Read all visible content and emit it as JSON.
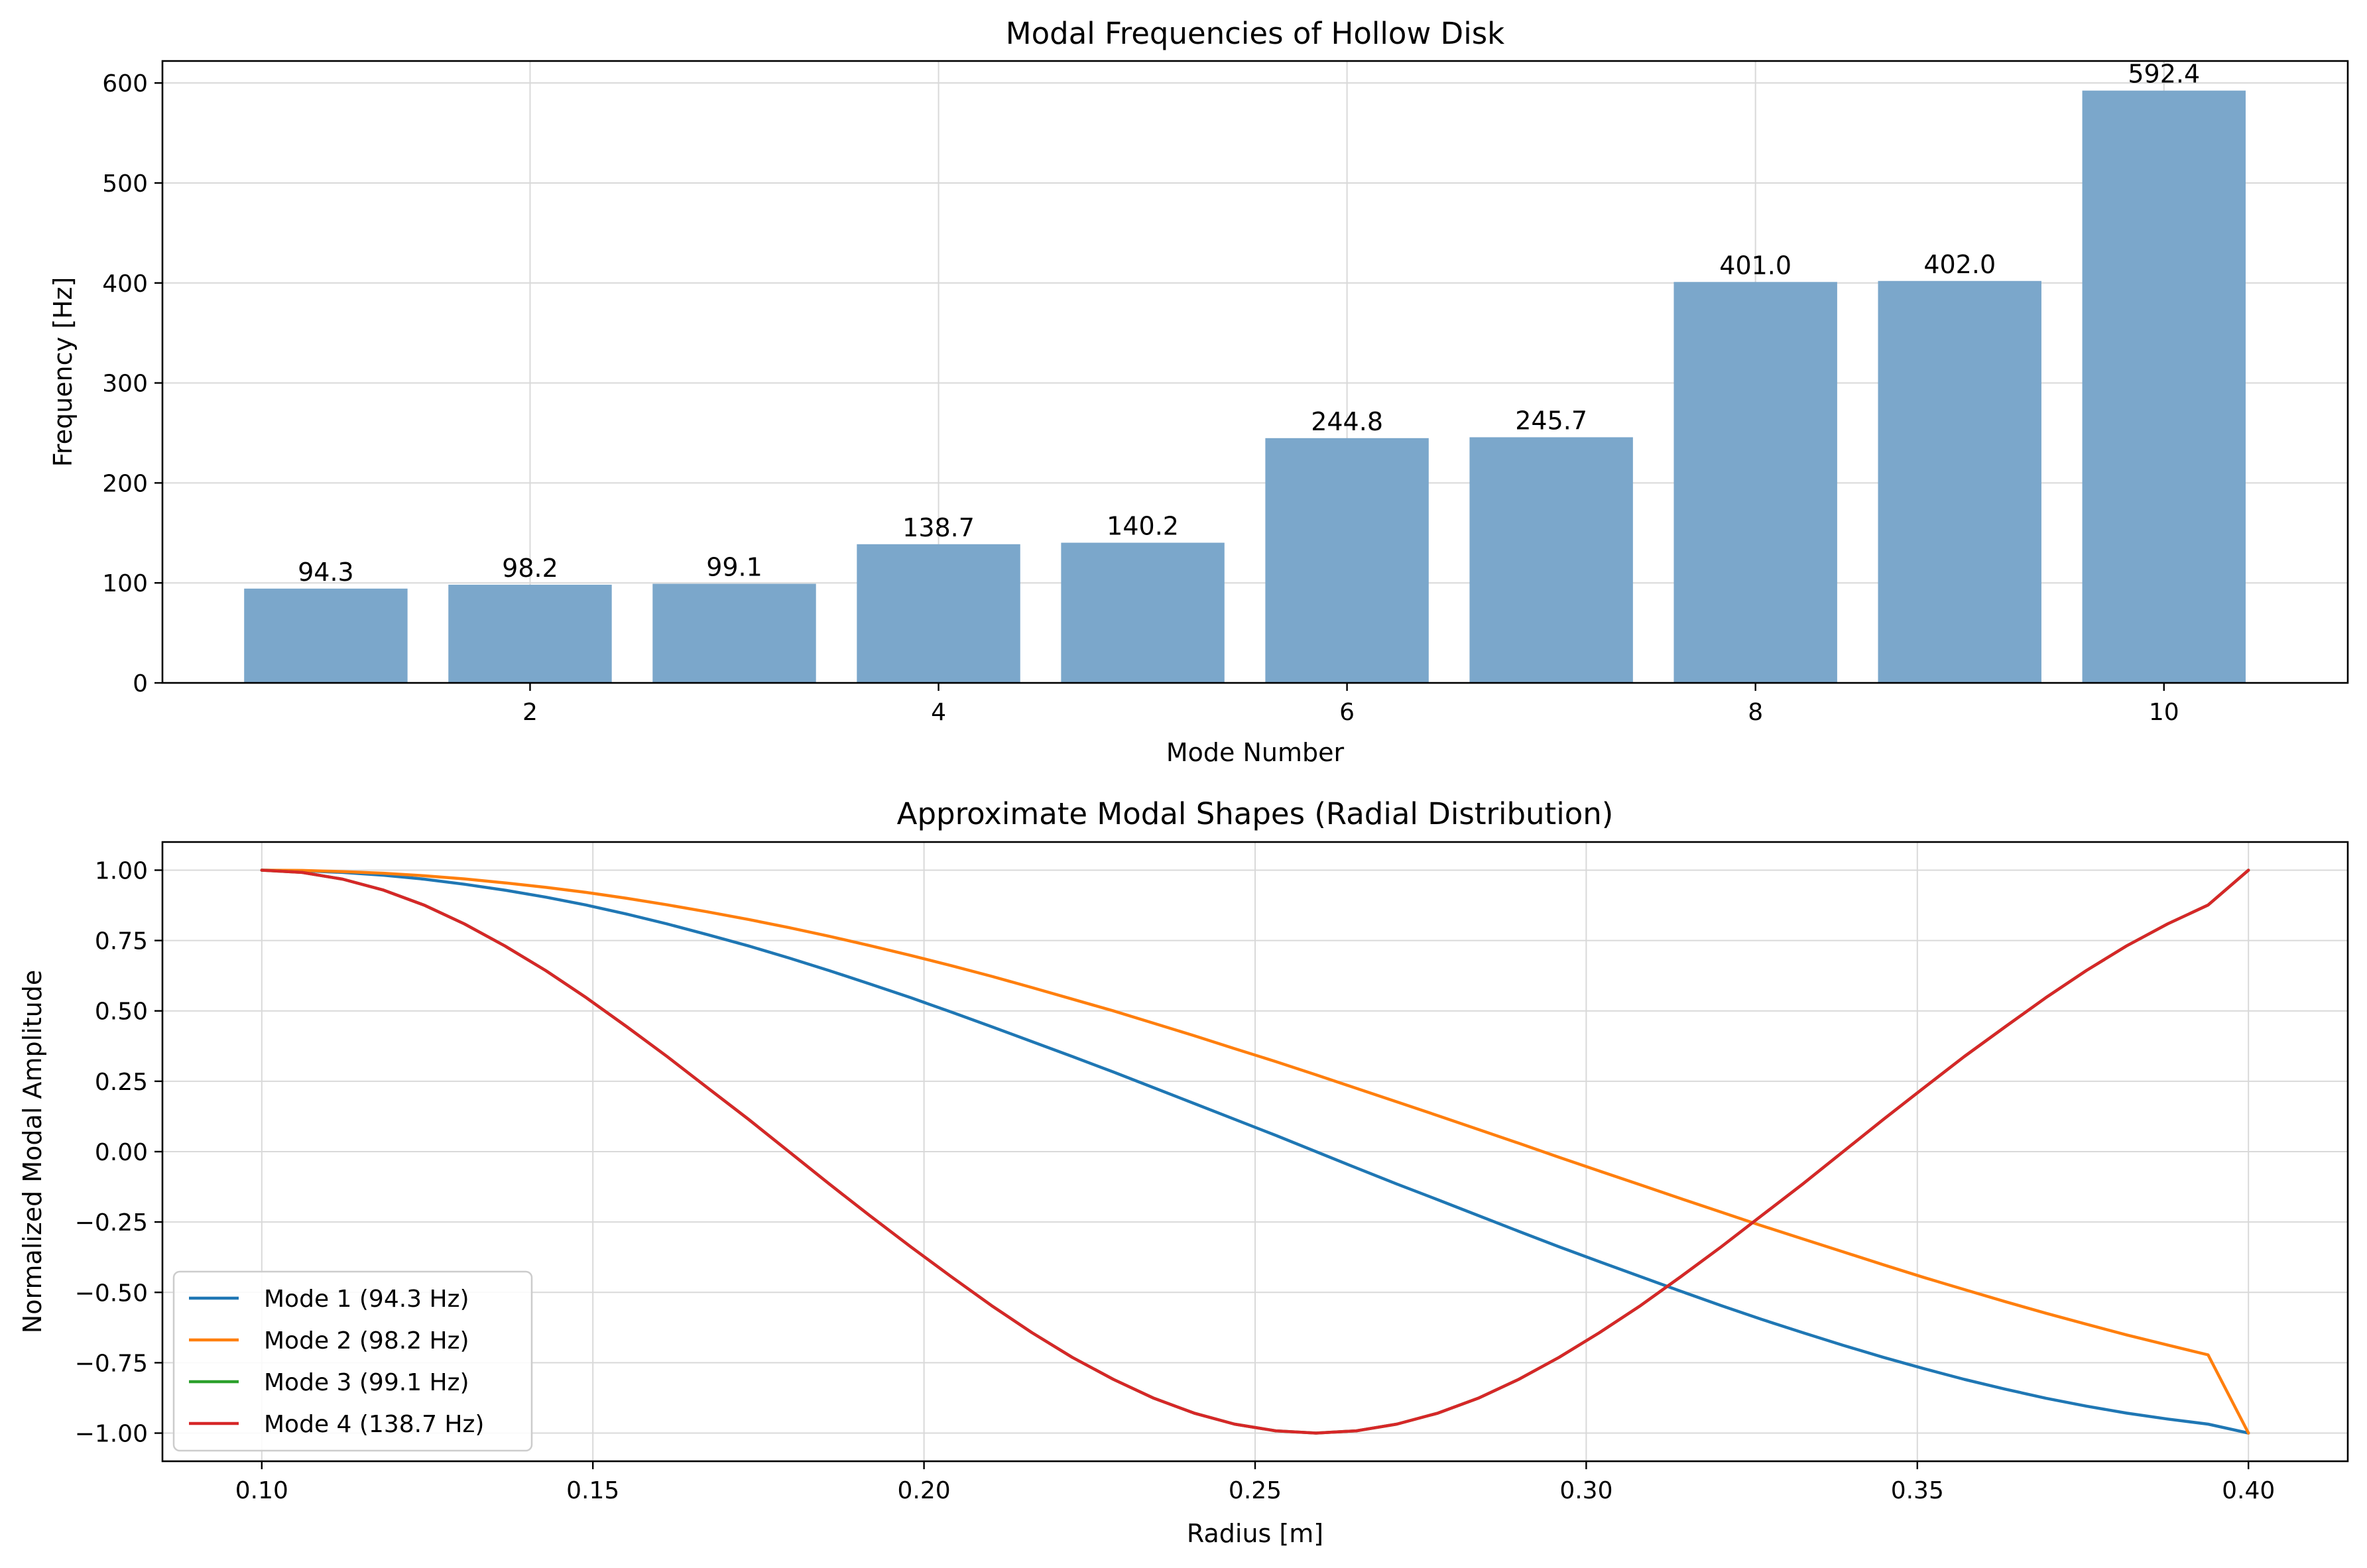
{
  "chart_data": [
    {
      "type": "bar",
      "title": "Modal Frequencies of Hollow Disk",
      "xlabel": "Mode Number",
      "ylabel": "Frequency [Hz]",
      "x": [
        1,
        2,
        3,
        4,
        5,
        6,
        7,
        8,
        9,
        10
      ],
      "values": [
        94.3,
        98.2,
        99.1,
        138.7,
        140.2,
        244.8,
        245.7,
        401.0,
        402.0,
        592.4
      ],
      "value_labels": [
        "94.3",
        "98.2",
        "99.1",
        "138.7",
        "140.2",
        "244.8",
        "245.7",
        "401.0",
        "402.0",
        "592.4"
      ],
      "xlim": [
        0.2,
        10.9
      ],
      "ylim": [
        0,
        622
      ],
      "xticks": [
        2,
        4,
        6,
        8,
        10
      ],
      "xtick_labels": [
        "2",
        "4",
        "6",
        "8",
        "10"
      ],
      "yticks": [
        0,
        100,
        200,
        300,
        400,
        500,
        600
      ],
      "ytick_labels": [
        "0",
        "100",
        "200",
        "300",
        "400",
        "500",
        "600"
      ],
      "bar_color": "#7ba7cb",
      "grid": true
    },
    {
      "type": "line",
      "title": "Approximate Modal Shapes (Radial Distribution)",
      "xlabel": "Radius [m]",
      "ylabel": "Normalized Modal Amplitude",
      "xlim": [
        0.085,
        0.415
      ],
      "ylim": [
        -1.1,
        1.1
      ],
      "xticks": [
        0.1,
        0.15,
        0.2,
        0.25,
        0.3,
        0.35,
        0.4
      ],
      "xtick_labels": [
        "0.10",
        "0.15",
        "0.20",
        "0.25",
        "0.30",
        "0.35",
        "0.40"
      ],
      "yticks": [
        1.0,
        0.75,
        0.5,
        0.25,
        0.0,
        -0.25,
        -0.5,
        -0.75,
        -1.0
      ],
      "ytick_labels": [
        "1.00",
        "0.75",
        "0.50",
        "0.25",
        "0.00",
        "−0.25",
        "−0.50",
        "−0.75",
        "−1.00"
      ],
      "x": [
        0.1,
        0.1061,
        0.1122,
        0.1184,
        0.1245,
        0.1306,
        0.1367,
        0.1429,
        0.149,
        0.1551,
        0.1612,
        0.1673,
        0.1735,
        0.1796,
        0.1857,
        0.1918,
        0.198,
        0.2041,
        0.2102,
        0.2163,
        0.2224,
        0.2286,
        0.2347,
        0.2408,
        0.2469,
        0.2531,
        0.2592,
        0.2653,
        0.2714,
        0.2776,
        0.2837,
        0.2898,
        0.2959,
        0.302,
        0.3082,
        0.3143,
        0.3204,
        0.3265,
        0.3327,
        0.3388,
        0.3449,
        0.351,
        0.3571,
        0.3633,
        0.3694,
        0.3755,
        0.3816,
        0.3878,
        0.3939,
        0.4
      ],
      "series": [
        {
          "name": "Mode 1 (94.3 Hz)",
          "color": "#1f77b4",
          "values": [
            1.0,
            0.998,
            0.992,
            0.982,
            0.968,
            0.95,
            0.929,
            0.904,
            0.876,
            0.844,
            0.809,
            0.771,
            0.731,
            0.688,
            0.643,
            0.596,
            0.547,
            0.496,
            0.444,
            0.391,
            0.338,
            0.283,
            0.227,
            0.171,
            0.115,
            0.058,
            0.0,
            -0.058,
            -0.115,
            -0.171,
            -0.227,
            -0.283,
            -0.338,
            -0.391,
            -0.444,
            -0.496,
            -0.547,
            -0.596,
            -0.643,
            -0.688,
            -0.731,
            -0.771,
            -0.809,
            -0.844,
            -0.876,
            -0.904,
            -0.929,
            -0.95,
            -0.968,
            -1.0
          ]
        },
        {
          "name": "Mode 2 (98.2 Hz)",
          "color": "#ff7f0e",
          "values": [
            1.0,
            0.999,
            0.995,
            0.989,
            0.98,
            0.969,
            0.955,
            0.939,
            0.921,
            0.9,
            0.877,
            0.852,
            0.825,
            0.796,
            0.765,
            0.732,
            0.697,
            0.661,
            0.623,
            0.583,
            0.542,
            0.5,
            0.456,
            0.412,
            0.366,
            0.32,
            0.273,
            0.225,
            0.177,
            0.128,
            0.079,
            0.03,
            -0.02,
            -0.069,
            -0.118,
            -0.167,
            -0.215,
            -0.263,
            -0.31,
            -0.356,
            -0.402,
            -0.447,
            -0.49,
            -0.533,
            -0.574,
            -0.613,
            -0.651,
            -0.687,
            -0.722,
            -1.0
          ]
        },
        {
          "name": "Mode 3 (99.1 Hz)",
          "color": "#2ca02c",
          "values": [
            1.0,
            0.992,
            0.968,
            0.929,
            0.876,
            0.809,
            0.731,
            0.643,
            0.547,
            0.444,
            0.338,
            0.227,
            0.115,
            0.0,
            -0.115,
            -0.227,
            -0.338,
            -0.444,
            -0.547,
            -0.643,
            -0.731,
            -0.809,
            -0.876,
            -0.929,
            -0.968,
            -0.992,
            -1.0,
            -0.992,
            -0.968,
            -0.929,
            -0.876,
            -0.809,
            -0.731,
            -0.643,
            -0.547,
            -0.444,
            -0.338,
            -0.227,
            -0.115,
            0.0,
            0.115,
            0.227,
            0.338,
            0.444,
            0.547,
            0.643,
            0.731,
            0.809,
            0.876,
            1.0
          ]
        },
        {
          "name": "Mode 4 (138.7 Hz)",
          "color": "#d62728",
          "values": [
            1.0,
            0.992,
            0.968,
            0.929,
            0.876,
            0.809,
            0.731,
            0.643,
            0.547,
            0.444,
            0.338,
            0.227,
            0.115,
            0.0,
            -0.115,
            -0.227,
            -0.338,
            -0.444,
            -0.547,
            -0.643,
            -0.731,
            -0.809,
            -0.876,
            -0.929,
            -0.968,
            -0.992,
            -1.0,
            -0.992,
            -0.968,
            -0.929,
            -0.876,
            -0.809,
            -0.731,
            -0.643,
            -0.547,
            -0.444,
            -0.338,
            -0.227,
            -0.115,
            0.0,
            0.115,
            0.227,
            0.338,
            0.444,
            0.547,
            0.643,
            0.731,
            0.809,
            0.876,
            1.0
          ]
        }
      ],
      "legend": "lower-left",
      "grid": true
    }
  ]
}
